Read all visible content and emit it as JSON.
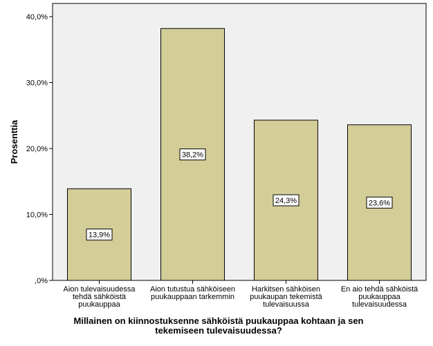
{
  "chart_data": {
    "type": "bar",
    "categories": [
      [
        "Aion tulevaisuudessa",
        "tehdä sähköistä",
        "puukauppaa"
      ],
      [
        "Aion tutustua sähköiseen",
        "puukauppaan tarkemmin"
      ],
      [
        "Harkitsen sähköisen",
        "puukaupan tekemistä",
        "tulevaisuussa"
      ],
      [
        "En aio tehdä sähköistä",
        "puukauppaa",
        "tulevaisuudessa"
      ]
    ],
    "values": [
      13.9,
      38.2,
      24.3,
      23.6
    ],
    "data_labels": [
      "13,9%",
      "38,2%",
      "24,3%",
      "23,6%"
    ],
    "ylabel": "Prosenttia",
    "xlabel_lines": [
      "Millainen on kiinnostuksenne sähköistä puukauppaa kohtaan ja sen",
      "tekemiseen tulevaisuudessa?"
    ],
    "ylim": [
      0,
      42
    ],
    "yticks": [
      0,
      10,
      20,
      30,
      40
    ],
    "ytick_labels": [
      ",0%",
      "10,0%",
      "20,0%",
      "30,0%",
      "40,0%"
    ],
    "grid": false,
    "colors": {
      "bar_fill": "#d3ce98",
      "bar_stroke": "#000000",
      "plot_bg": "#f0f0f0",
      "axis": "#000000"
    }
  }
}
